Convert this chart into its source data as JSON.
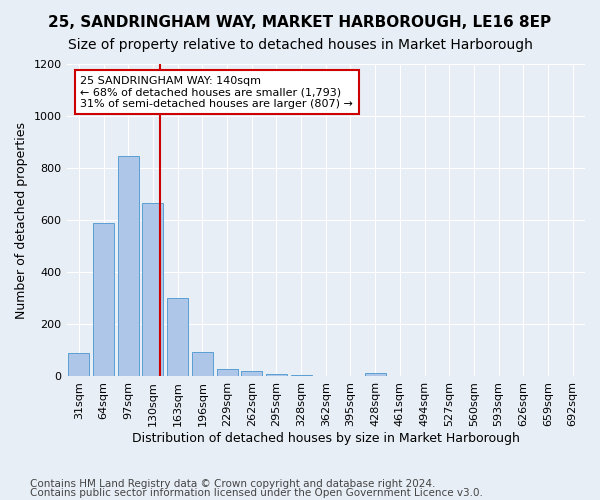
{
  "title1": "25, SANDRINGHAM WAY, MARKET HARBOROUGH, LE16 8EP",
  "title2": "Size of property relative to detached houses in Market Harborough",
  "xlabel": "Distribution of detached houses by size in Market Harborough",
  "ylabel": "Number of detached properties",
  "categories": [
    "31sqm",
    "64sqm",
    "97sqm",
    "130sqm",
    "163sqm",
    "196sqm",
    "229sqm",
    "262sqm",
    "295sqm",
    "328sqm",
    "362sqm",
    "395sqm",
    "428sqm",
    "461sqm",
    "494sqm",
    "527sqm",
    "560sqm",
    "593sqm",
    "626sqm",
    "659sqm",
    "692sqm"
  ],
  "values": [
    90,
    590,
    845,
    665,
    300,
    95,
    30,
    20,
    10,
    5,
    0,
    0,
    15,
    0,
    0,
    0,
    0,
    0,
    0,
    0,
    0
  ],
  "bar_color": "#aec6e8",
  "bar_edge_color": "#5a9fd4",
  "vline_color": "#cc0000",
  "annotation_lines": [
    "25 SANDRINGHAM WAY: 140sqm",
    "← 68% of detached houses are smaller (1,793)",
    "31% of semi-detached houses are larger (807) →"
  ],
  "annotation_box_color": "#ffffff",
  "annotation_box_edge": "#cc0000",
  "ylim": [
    0,
    1200
  ],
  "yticks": [
    0,
    200,
    400,
    600,
    800,
    1000,
    1200
  ],
  "background_color": "#e8eef6",
  "footer1": "Contains HM Land Registry data © Crown copyright and database right 2024.",
  "footer2": "Contains public sector information licensed under the Open Government Licence v3.0.",
  "title1_fontsize": 11,
  "title2_fontsize": 10,
  "xlabel_fontsize": 9,
  "ylabel_fontsize": 9,
  "tick_fontsize": 8,
  "footer_fontsize": 7.5
}
